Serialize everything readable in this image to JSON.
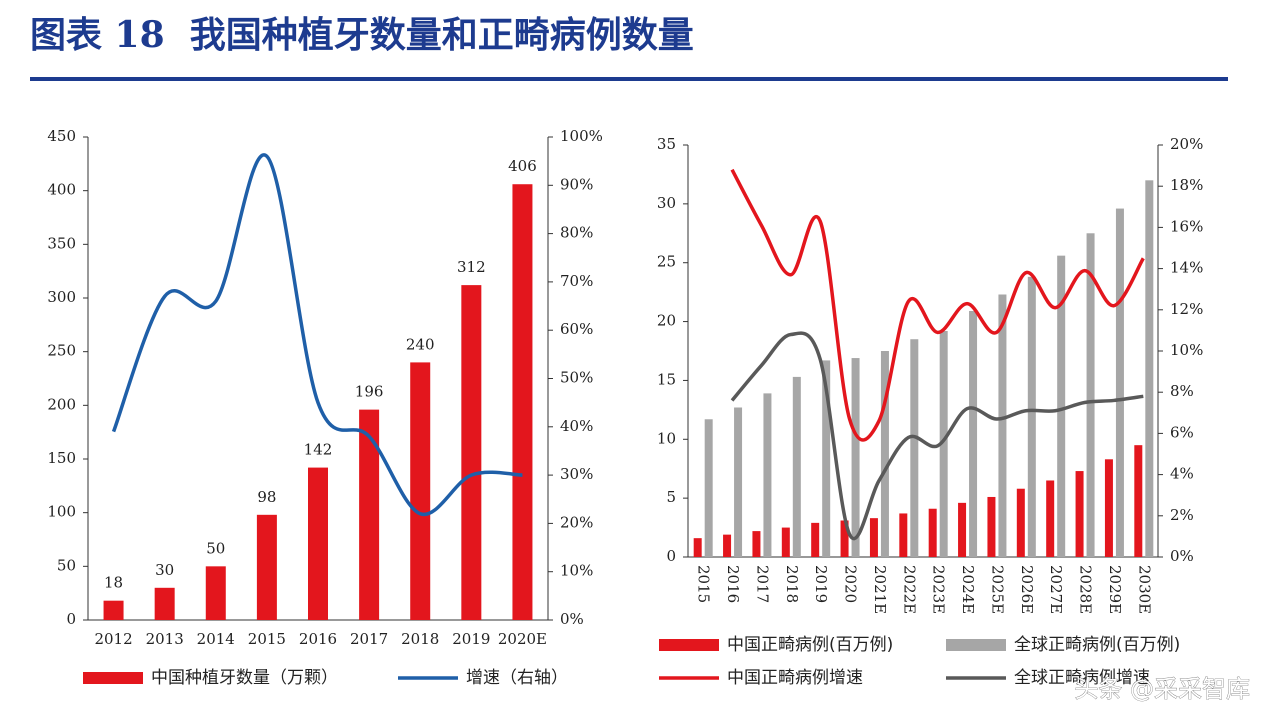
{
  "page_title": "图表 18  我国种植牙数量和正畸病例数量",
  "watermark": "头条 @采采智库",
  "chart_data": [
    {
      "type": "bar",
      "categories": [
        "2012",
        "2013",
        "2014",
        "2015",
        "2016",
        "2017",
        "2018",
        "2019",
        "2020E"
      ],
      "series": [
        {
          "name": "中国种植牙数量（万颗）",
          "type": "bar",
          "color": "#e3161d",
          "values": [
            18,
            30,
            50,
            98,
            142,
            196,
            240,
            312,
            406
          ]
        },
        {
          "name": "增速（右轴）",
          "type": "line",
          "axis": "y2",
          "color": "#1f5fa8",
          "values": [
            39,
            67,
            66,
            96,
            45,
            38,
            22,
            30,
            30
          ]
        }
      ],
      "data_labels": true,
      "ylim": [
        0,
        450
      ],
      "yticks": [
        0,
        50,
        100,
        150,
        200,
        250,
        300,
        350,
        400,
        450
      ],
      "y2lim": [
        0,
        100
      ],
      "y2ticks": [
        {
          "value": 0,
          "label": "0%"
        },
        {
          "value": 10,
          "label": "10%"
        },
        {
          "value": 20,
          "label": "20%"
        },
        {
          "value": 30,
          "label": "30%"
        },
        {
          "value": 40,
          "label": "40%"
        },
        {
          "value": 50,
          "label": "50%"
        },
        {
          "value": 60,
          "label": "60%"
        },
        {
          "value": 70,
          "label": "70%"
        },
        {
          "value": 80,
          "label": "80%"
        },
        {
          "value": 90,
          "label": "90%"
        },
        {
          "value": 100,
          "label": "100%"
        }
      ]
    },
    {
      "type": "bar",
      "categories": [
        "2015",
        "2016",
        "2017",
        "2018",
        "2019",
        "2020",
        "2021E",
        "2022E",
        "2023E",
        "2024E",
        "2025E",
        "2026E",
        "2027E",
        "2028E",
        "2029E",
        "2030E"
      ],
      "series": [
        {
          "name": "中国正畸病例(百万例)",
          "type": "bar",
          "color": "#e3161d",
          "values": [
            1.6,
            1.9,
            2.2,
            2.5,
            2.9,
            3.1,
            3.3,
            3.7,
            4.1,
            4.6,
            5.1,
            5.8,
            6.5,
            7.3,
            8.3,
            9.5
          ]
        },
        {
          "name": "全球正畸病例(百万例)",
          "type": "bar",
          "color": "#a6a6a6",
          "values": [
            11.7,
            12.7,
            13.9,
            15.3,
            16.7,
            16.9,
            17.5,
            18.5,
            19.2,
            20.9,
            22.3,
            23.8,
            25.6,
            27.5,
            29.6,
            32.0
          ]
        },
        {
          "name": "中国正畸病例增速",
          "type": "line",
          "axis": "y2",
          "color": "#e3161d",
          "values": [
            null,
            18.8,
            16.1,
            13.7,
            16.3,
            6.7,
            6.6,
            12.4,
            10.9,
            12.3,
            10.9,
            13.8,
            12.1,
            13.9,
            12.2,
            14.5
          ]
        },
        {
          "name": "全球正畸病例增速",
          "type": "line",
          "axis": "y2",
          "color": "#595959",
          "values": [
            null,
            7.6,
            9.3,
            10.8,
            9.6,
            1.1,
            3.7,
            5.8,
            5.4,
            7.2,
            6.7,
            7.1,
            7.1,
            7.5,
            7.6,
            7.8
          ]
        }
      ],
      "data_labels": false,
      "ylim": [
        0,
        35
      ],
      "yticks": [
        0,
        5,
        10,
        15,
        20,
        25,
        30,
        35
      ],
      "y2lim": [
        0,
        20
      ],
      "y2ticks": [
        {
          "value": 0,
          "label": "0%"
        },
        {
          "value": 2,
          "label": "2%"
        },
        {
          "value": 4,
          "label": "4%"
        },
        {
          "value": 6,
          "label": "6%"
        },
        {
          "value": 8,
          "label": "8%"
        },
        {
          "value": 10,
          "label": "10%"
        },
        {
          "value": 12,
          "label": "12%"
        },
        {
          "value": 14,
          "label": "14%"
        },
        {
          "value": 16,
          "label": "16%"
        },
        {
          "value": 18,
          "label": "18%"
        },
        {
          "value": 20,
          "label": "20%"
        }
      ]
    }
  ]
}
